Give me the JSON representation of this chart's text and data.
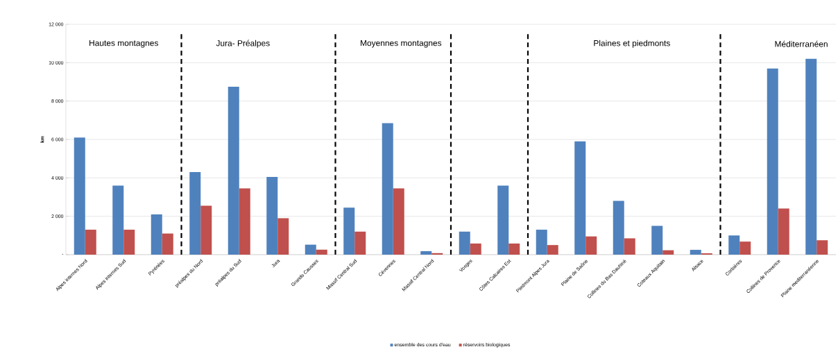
{
  "chart_data": {
    "type": "bar",
    "ylabel": "km",
    "categories": [
      "Alpes internes Nord",
      "Alpes internes Sud",
      "Pyrénées",
      "préalpes du Nord",
      "préalpes du Sud",
      "Jura",
      "Grands Causses",
      "Massif Central Sud",
      "Cévennes",
      "Massif Central Nord",
      "Vosges",
      "Côtes Calcaires Est",
      "Piedmont Alpes Jura",
      "Plaine de Saône",
      "Collines du Bas Dauhiné",
      "Coteaux Aquitain",
      "Alsace",
      "Corbières",
      "Collines de Provence",
      "Plaine mediterranéenne"
    ],
    "series": [
      {
        "name": "ensemble des cours d'eau",
        "color": "#4f81bd",
        "values": [
          6100,
          3600,
          2100,
          4300,
          8750,
          4050,
          520,
          2450,
          6850,
          180,
          1200,
          3600,
          1300,
          5900,
          2800,
          1500,
          250,
          1000,
          9700,
          10200
        ]
      },
      {
        "name": "réservoirs biologiques",
        "color": "#c0504d",
        "values": [
          1300,
          1300,
          1100,
          2550,
          3450,
          1900,
          260,
          1200,
          3450,
          80,
          580,
          580,
          500,
          950,
          850,
          230,
          70,
          680,
          2400,
          750
        ]
      }
    ],
    "ylim": [
      0,
      12000
    ],
    "yticks": [
      {
        "value": 0,
        "label": "-"
      },
      {
        "value": 2000,
        "label": "2 000"
      },
      {
        "value": 4000,
        "label": "4 000"
      },
      {
        "value": 6000,
        "label": "6 000"
      },
      {
        "value": 8000,
        "label": "8 000"
      },
      {
        "value": 10000,
        "label": "10 000"
      },
      {
        "value": 12000,
        "label": "12 000"
      }
    ],
    "grid": "y",
    "legend": "bottom",
    "annotations": [
      "Hautes montagnes",
      "Jura- Préalpes",
      "Moyennes  montagnes",
      "Plaines et piedmonts",
      "Méditerranéen"
    ]
  }
}
